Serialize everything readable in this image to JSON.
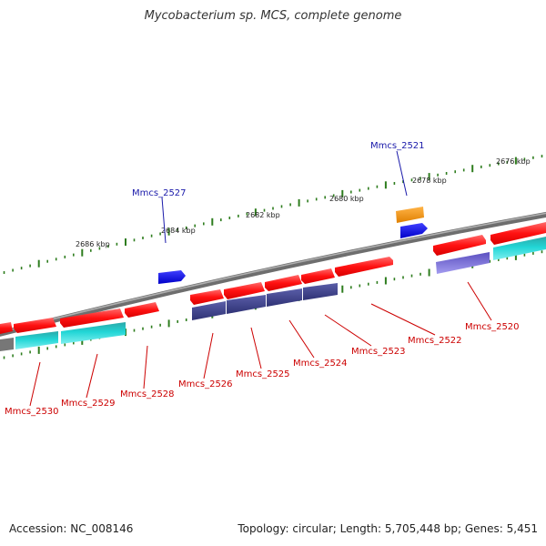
{
  "title": "Mycobacterium sp. MCS, complete genome",
  "footer": {
    "accession": "Accession: NC_008146",
    "summary": "Topology: circular; Length: 5,705,448 bp; Genes: 5,451"
  },
  "colors": {
    "backbone": "#808080",
    "tick": "#2e7d1e",
    "red_gene": "#ff1a1a",
    "cyan_gene": "#22cccc",
    "navy_gene": "#3b3f8a",
    "lavender_gene": "#7a6fd6",
    "blue_gene": "#1010ee",
    "orange_gene": "#ff9900",
    "label_red": "#cc0000",
    "label_blue": "#1a1aaa"
  },
  "kbp_labels": [
    "2676 kbp",
    "2678 kbp",
    "2680 kbp",
    "2682 kbp",
    "2684 kbp",
    "2686 kbp"
  ],
  "genes": {
    "top": [
      "Mmcs_2521",
      "Mmcs_2527"
    ],
    "bottom": [
      "Mmcs_2520",
      "Mmcs_2522",
      "Mmcs_2523",
      "Mmcs_2524",
      "Mmcs_2525",
      "Mmcs_2526",
      "Mmcs_2528",
      "Mmcs_2529",
      "Mmcs_2530"
    ]
  }
}
